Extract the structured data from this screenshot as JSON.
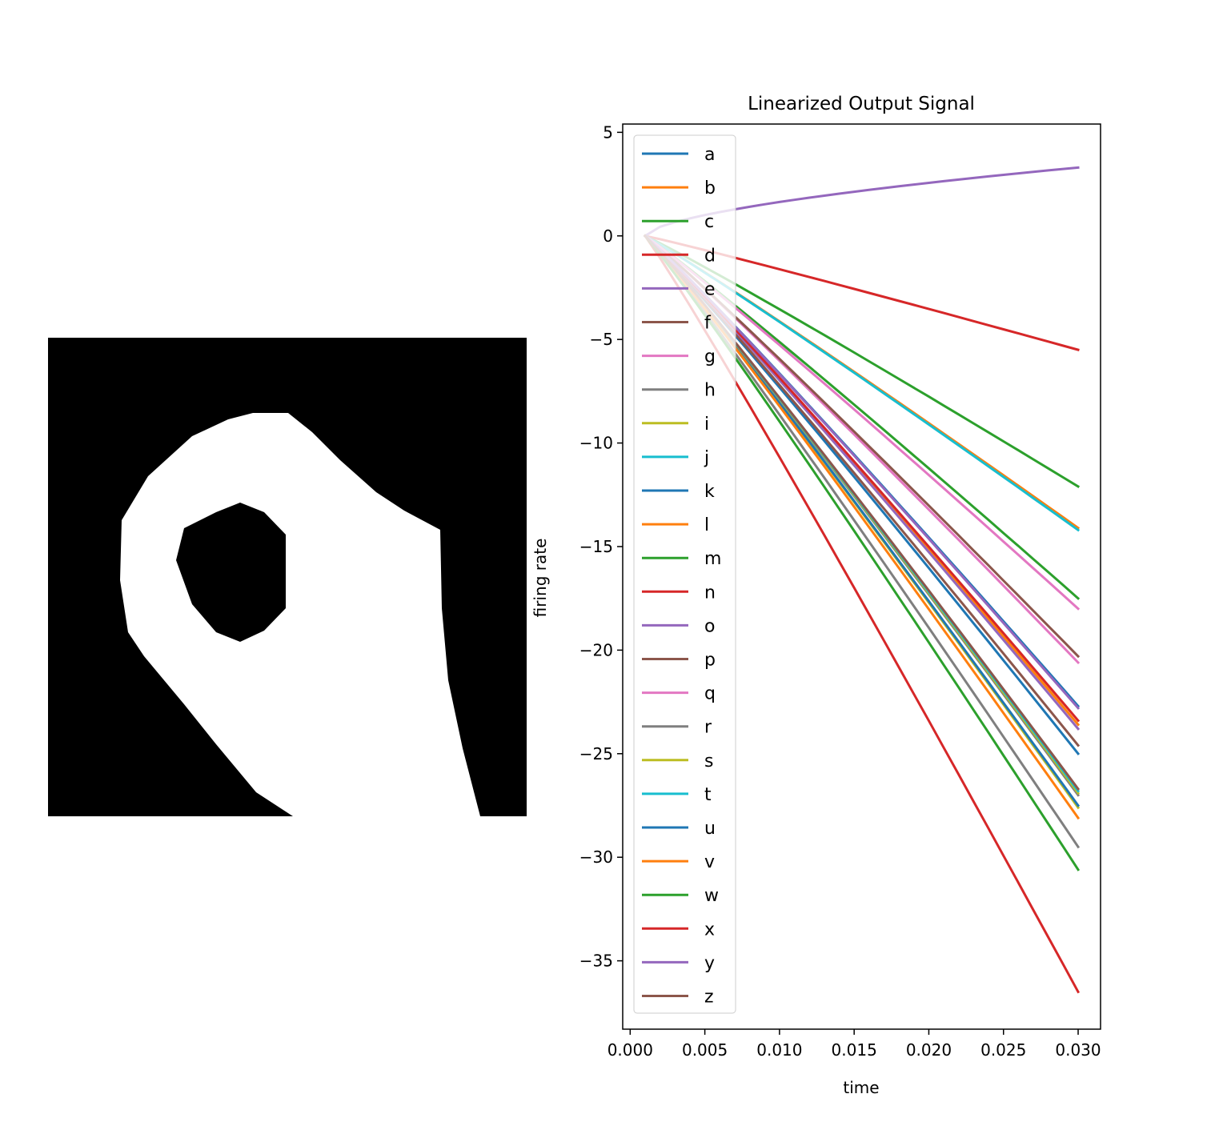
{
  "chart_data": [
    {
      "type": "image",
      "colormap": "gray",
      "rows": 28,
      "cols": 28
    },
    {
      "type": "line",
      "title": "Linearized Output Signal",
      "xlabel": "time",
      "ylabel": "firing rate",
      "xlim": [
        -0.0005,
        0.0315
      ],
      "ylim": [
        -38.3,
        5.4
      ],
      "xticks": [
        0.0,
        0.005,
        0.01,
        0.015,
        0.02,
        0.025,
        0.03
      ],
      "xtick_labels": [
        "0.000",
        "0.005",
        "0.010",
        "0.015",
        "0.020",
        "0.025",
        "0.030"
      ],
      "yticks": [
        5,
        0,
        -5,
        -10,
        -15,
        -20,
        -25,
        -30,
        -35
      ],
      "ytick_labels": [
        "5",
        "0",
        "−5",
        "−10",
        "−15",
        "−20",
        "−25",
        "−30",
        "−35"
      ],
      "grid": false,
      "legend_position": "upper-left",
      "x": [
        0.001,
        0.002,
        0.003,
        0.004,
        0.005,
        0.006,
        0.007,
        0.008,
        0.009,
        0.01,
        0.011,
        0.012,
        0.013,
        0.014,
        0.015,
        0.016,
        0.017,
        0.018,
        0.019,
        0.02,
        0.021,
        0.022,
        0.023,
        0.024,
        0.025,
        0.026,
        0.027,
        0.028,
        0.029,
        0.03
      ],
      "series": [
        {
          "name": "a",
          "color": "#1f77b4",
          "start": 0,
          "end": -25.0
        },
        {
          "name": "b",
          "color": "#ff7f0e",
          "start": 0,
          "end": -14.1
        },
        {
          "name": "c",
          "color": "#2ca02c",
          "start": 0,
          "end": -12.1
        },
        {
          "name": "d",
          "color": "#d62728",
          "start": 0,
          "end": -5.5
        },
        {
          "name": "e",
          "color": "#9467bd",
          "start": 0,
          "end": 3.3
        },
        {
          "name": "f",
          "color": "#8c564b",
          "start": 0,
          "end": -24.6
        },
        {
          "name": "g",
          "color": "#e377c2",
          "start": 0,
          "end": -20.6
        },
        {
          "name": "h",
          "color": "#7f7f7f",
          "start": 0,
          "end": -29.5
        },
        {
          "name": "i",
          "color": "#bcbd22",
          "start": 0,
          "end": -27.6
        },
        {
          "name": "j",
          "color": "#17becf",
          "start": 0,
          "end": -14.2
        },
        {
          "name": "k",
          "color": "#1f77b4",
          "start": 0,
          "end": -27.5
        },
        {
          "name": "l",
          "color": "#ff7f0e",
          "start": 0,
          "end": -23.6
        },
        {
          "name": "m",
          "color": "#2ca02c",
          "start": 0,
          "end": -17.5
        },
        {
          "name": "n",
          "color": "#d62728",
          "start": 0,
          "end": -36.5
        },
        {
          "name": "o",
          "color": "#9467bd",
          "start": 0,
          "end": -23.8
        },
        {
          "name": "p",
          "color": "#8c564b",
          "start": 0,
          "end": -20.3
        },
        {
          "name": "q",
          "color": "#e377c2",
          "start": 0,
          "end": -18.0
        },
        {
          "name": "r",
          "color": "#7f7f7f",
          "start": 0,
          "end": -27.0
        },
        {
          "name": "s",
          "color": "#bcbd22",
          "start": 0,
          "end": -26.9
        },
        {
          "name": "t",
          "color": "#17becf",
          "start": 0,
          "end": -26.8
        },
        {
          "name": "u",
          "color": "#1f77b4",
          "start": 0,
          "end": -22.7
        },
        {
          "name": "v",
          "color": "#ff7f0e",
          "start": 0,
          "end": -28.1
        },
        {
          "name": "w",
          "color": "#2ca02c",
          "start": 0,
          "end": -30.6
        },
        {
          "name": "x",
          "color": "#d62728",
          "start": 0,
          "end": -23.4
        },
        {
          "name": "y",
          "color": "#9467bd",
          "start": 0,
          "end": -22.8
        },
        {
          "name": "z",
          "color": "#8c564b",
          "start": 0,
          "end": -26.7
        }
      ]
    }
  ]
}
